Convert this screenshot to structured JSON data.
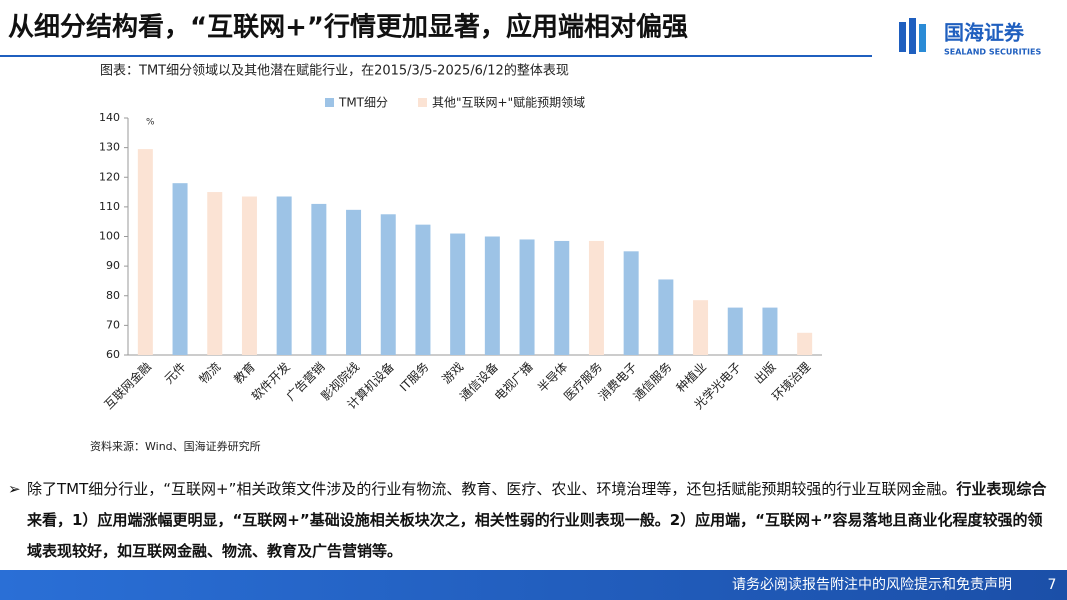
{
  "header": {
    "title": "从细分结构看，“互联网+”行情更加显著，应用端相对偏强",
    "logo_cn": "国海证券",
    "logo_en": "SEALAND SECURITIES"
  },
  "chart_data": {
    "type": "bar",
    "title": "图表：TMT细分领域以及其他潜在赋能行业，在2015/3/5-2025/6/12的整体表现",
    "y_unit": "%",
    "categories": [
      "互联网金融",
      "元件",
      "物流",
      "教育",
      "软件开发",
      "广告营销",
      "影视院线",
      "计算机设备",
      "IT服务",
      "游戏",
      "通信设备",
      "电视广播",
      "半导体",
      "医疗服务",
      "消费电子",
      "通信服务",
      "种植业",
      "光学光电子",
      "出版",
      "环境治理"
    ],
    "series": [
      {
        "name": "TMT细分",
        "color": "#9dc3e6",
        "values": [
          null,
          118,
          null,
          null,
          113.5,
          111,
          109,
          107.5,
          104,
          101,
          100,
          99,
          98.5,
          null,
          95,
          85.5,
          null,
          76,
          76,
          null
        ]
      },
      {
        "name": "其他\"互联网+\"赋能预期领域",
        "color": "#fbe3d4",
        "values": [
          129.5,
          null,
          115,
          113.5,
          null,
          null,
          null,
          null,
          null,
          null,
          null,
          null,
          null,
          98.5,
          null,
          null,
          78.5,
          null,
          null,
          67.5
        ]
      }
    ],
    "ylim": [
      60,
      140
    ],
    "yticks": [
      60,
      70,
      80,
      90,
      100,
      110,
      120,
      130,
      140
    ],
    "source": "资料来源：Wind、国海证券研究所"
  },
  "body": {
    "segments": [
      {
        "text": "除了TMT细分行业，“互联网+”相关政策文件涉及的行业有物流、教育、医疗、农业、环境治理等，还包括赋能预期较强的行业互联网金融。",
        "bold": false
      },
      {
        "text": "行业表现综合来看，1）应用端涨幅更明显，“互联网+”基础设施相关板块次之，相关性弱的行业则表现一般。2）应用端，“互联网+”容易落地且商业化程度较强的领域表现较好，如互联网金融、物流、教育及广告营销等。",
        "bold": true
      }
    ]
  },
  "footer": {
    "disclaimer": "请务必阅读报告附注中的风险提示和免责声明",
    "page": "7"
  }
}
